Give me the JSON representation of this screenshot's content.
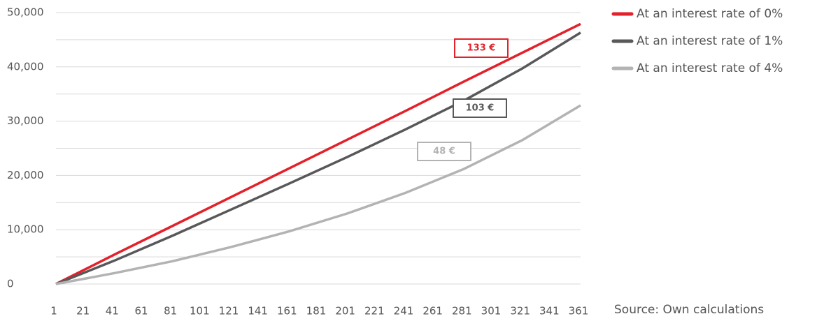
{
  "chart_data": {
    "type": "line",
    "x": [
      1,
      41,
      81,
      121,
      161,
      201,
      241,
      281,
      321,
      361
    ],
    "series": [
      {
        "name": "At an interest rate of 0%",
        "color": "#e2212a",
        "label": "133 €",
        "values": [
          0,
          5400,
          10700,
          16000,
          21300,
          26600,
          31900,
          37300,
          42600,
          47900
        ]
      },
      {
        "name": "At an interest rate of 1%",
        "color": "#58585a",
        "label": "103 €",
        "values": [
          0,
          4300,
          8900,
          13700,
          18500,
          23400,
          28500,
          33800,
          39700,
          46300
        ]
      },
      {
        "name": "At an interest rate of 4%",
        "color": "#b3b3b3",
        "label": "48 €",
        "values": [
          0,
          2000,
          4200,
          6800,
          9700,
          13000,
          16800,
          21200,
          26500,
          32900
        ]
      }
    ],
    "xlim": [
      1,
      361
    ],
    "xticks": [
      1,
      21,
      41,
      61,
      81,
      101,
      121,
      141,
      161,
      181,
      201,
      221,
      241,
      261,
      281,
      301,
      321,
      341,
      361
    ],
    "ylim": [
      0,
      50000
    ],
    "yticks": [
      0,
      {
        "value": 10000,
        "label": "10,000"
      },
      {
        "value": 20000,
        "label": "20,000"
      },
      {
        "value": 30000,
        "label": "30,000"
      },
      {
        "value": 40000,
        "label": "40,000"
      },
      {
        "value": 50000,
        "label": "50,000"
      }
    ],
    "minor_grid": [
      5000,
      15000,
      25000,
      35000,
      45000
    ],
    "grid": true,
    "legend": "right",
    "source": "Source: Own calculations"
  }
}
